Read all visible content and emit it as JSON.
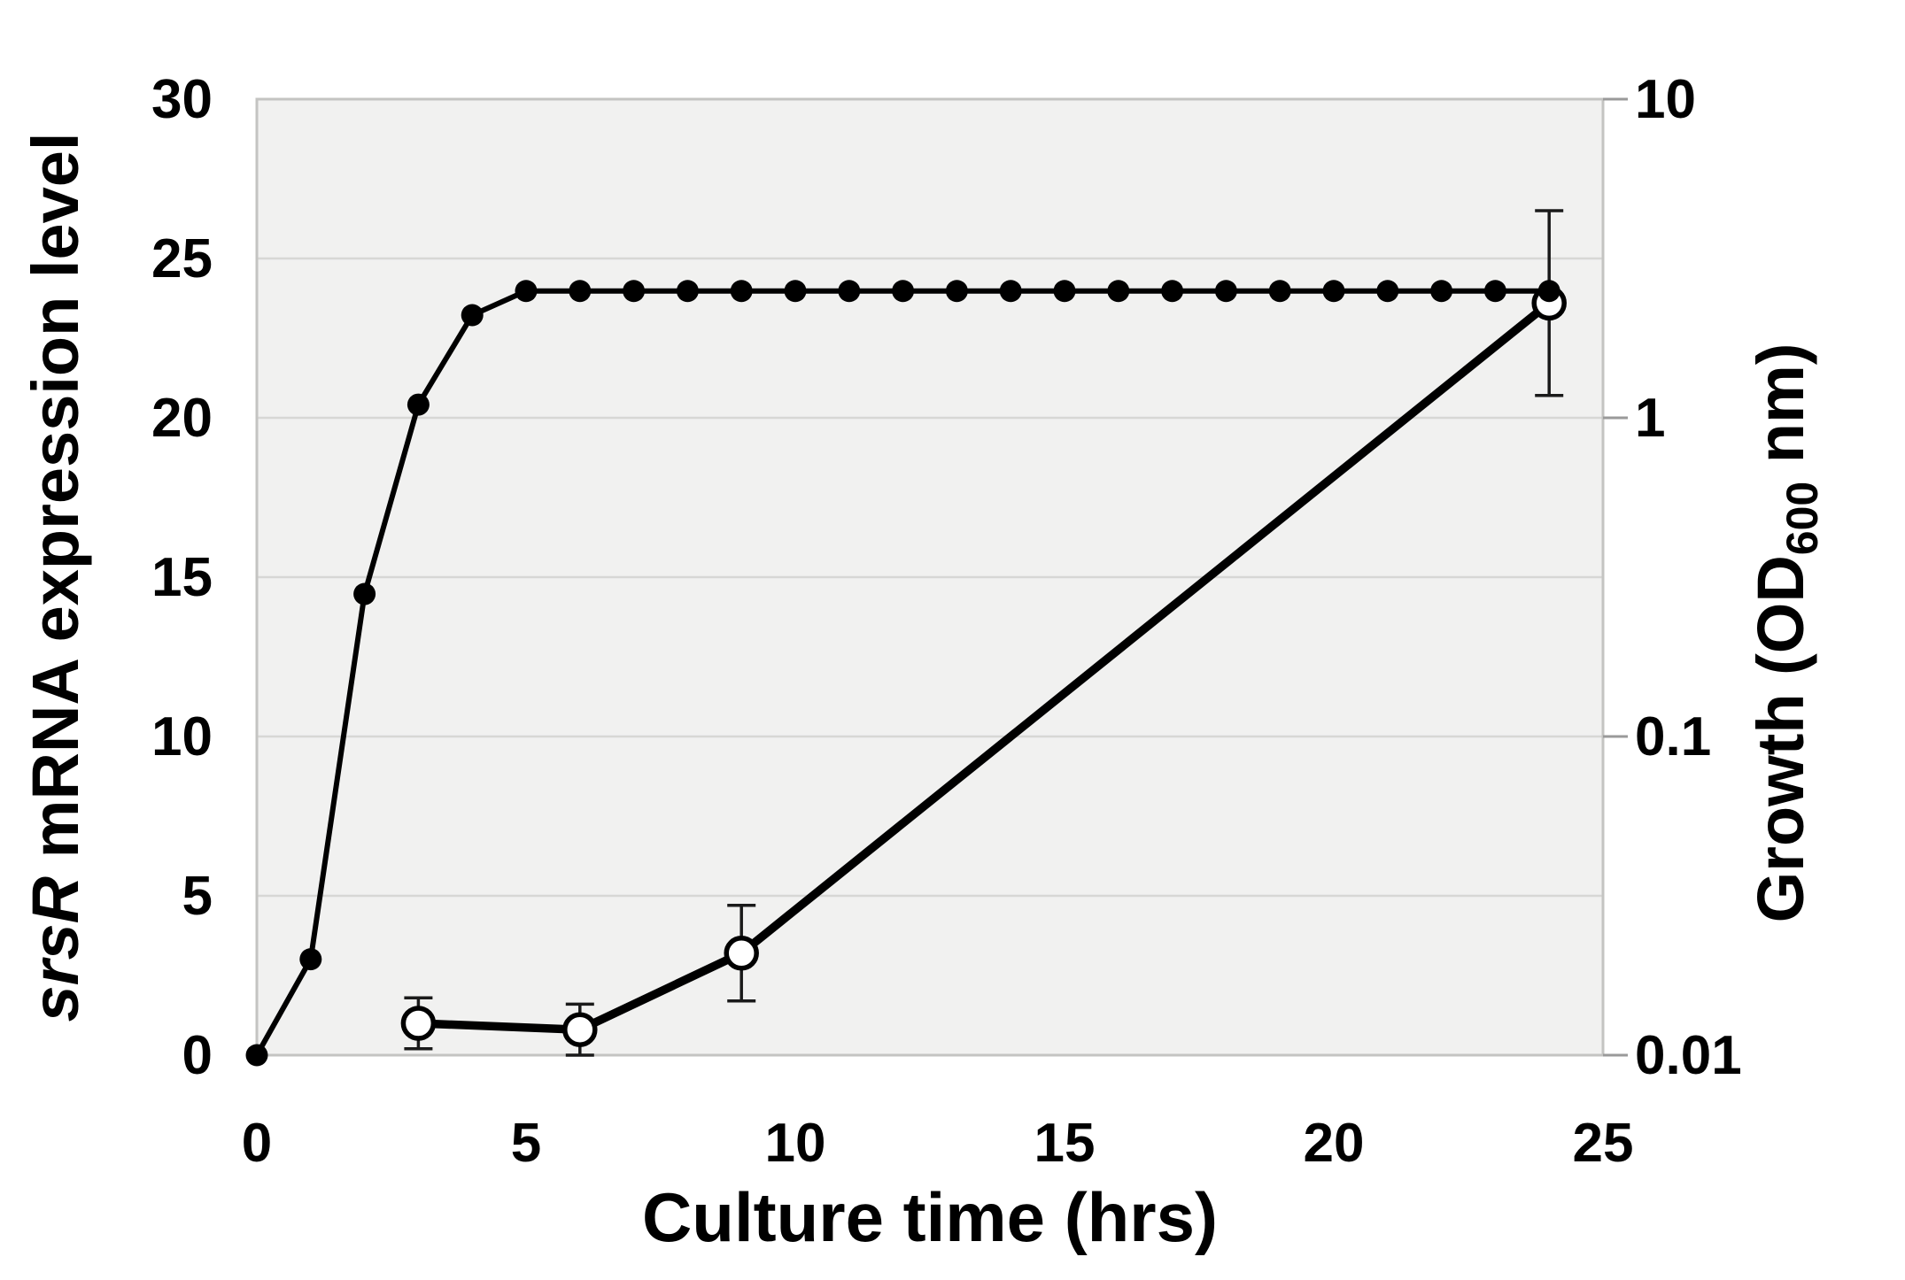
{
  "chart_data": {
    "type": "line",
    "title": "",
    "xlabel": "Culture time (hrs)",
    "x_axis": {
      "min": 0,
      "max": 25,
      "ticks": [
        0,
        5,
        10,
        15,
        20,
        25
      ],
      "tick_labels": [
        "0",
        "5",
        "10",
        "15",
        "20",
        "25"
      ]
    },
    "y_left": {
      "scale": "linear",
      "min": 0,
      "max": 30,
      "ticks": [
        0,
        5,
        10,
        15,
        20,
        25,
        30
      ],
      "tick_labels": [
        "0",
        "5",
        "10",
        "15",
        "20",
        "25",
        "30"
      ],
      "gridlines": [
        5,
        10,
        15,
        20,
        25
      ]
    },
    "y_right": {
      "scale": "log",
      "min": 0.01,
      "max": 10,
      "ticks": [
        0.01,
        0.1,
        1,
        10
      ],
      "tick_labels": [
        "0.01",
        "0.1",
        "1",
        "10"
      ]
    },
    "left_title": {
      "parts": [
        {
          "text": "srsR",
          "italic": true
        },
        {
          "text": " mRNA expression level",
          "italic": false
        }
      ]
    },
    "right_title": {
      "parts": [
        {
          "text": "Growth (OD",
          "sub": false
        },
        {
          "text": "600",
          "sub": true
        },
        {
          "text": " nm)",
          "sub": false
        }
      ]
    },
    "series": [
      {
        "name": "Growth (OD600 nm)",
        "axis": "right",
        "marker": "filled-circle",
        "x": [
          0,
          1,
          2,
          3,
          4,
          5,
          6,
          7,
          8,
          9,
          10,
          11,
          12,
          13,
          14,
          15,
          16,
          17,
          18,
          19,
          20,
          21,
          22,
          23,
          24
        ],
        "values": [
          0.01,
          0.02,
          0.28,
          1.1,
          2.1,
          2.5,
          2.5,
          2.5,
          2.5,
          2.5,
          2.5,
          2.5,
          2.5,
          2.5,
          2.5,
          2.5,
          2.5,
          2.5,
          2.5,
          2.5,
          2.5,
          2.5,
          2.5,
          2.5,
          2.5
        ]
      },
      {
        "name": "srsR mRNA expression level",
        "axis": "left",
        "marker": "open-circle",
        "x": [
          3,
          6,
          9,
          24
        ],
        "values": [
          1.0,
          0.8,
          3.2,
          23.6
        ],
        "errors": [
          0.8,
          0.8,
          1.5,
          2.9
        ]
      }
    ],
    "legend": "none",
    "grid": "horizontal-only",
    "colors": {
      "plot_bg": "#f1f1f0",
      "grid": "#d7d7d5",
      "border": "#c4c4c2",
      "tick": "#9a9a9a",
      "series": "#000000",
      "error_bar": "#1a1a1a",
      "open_marker_fill": "#ffffff"
    }
  }
}
